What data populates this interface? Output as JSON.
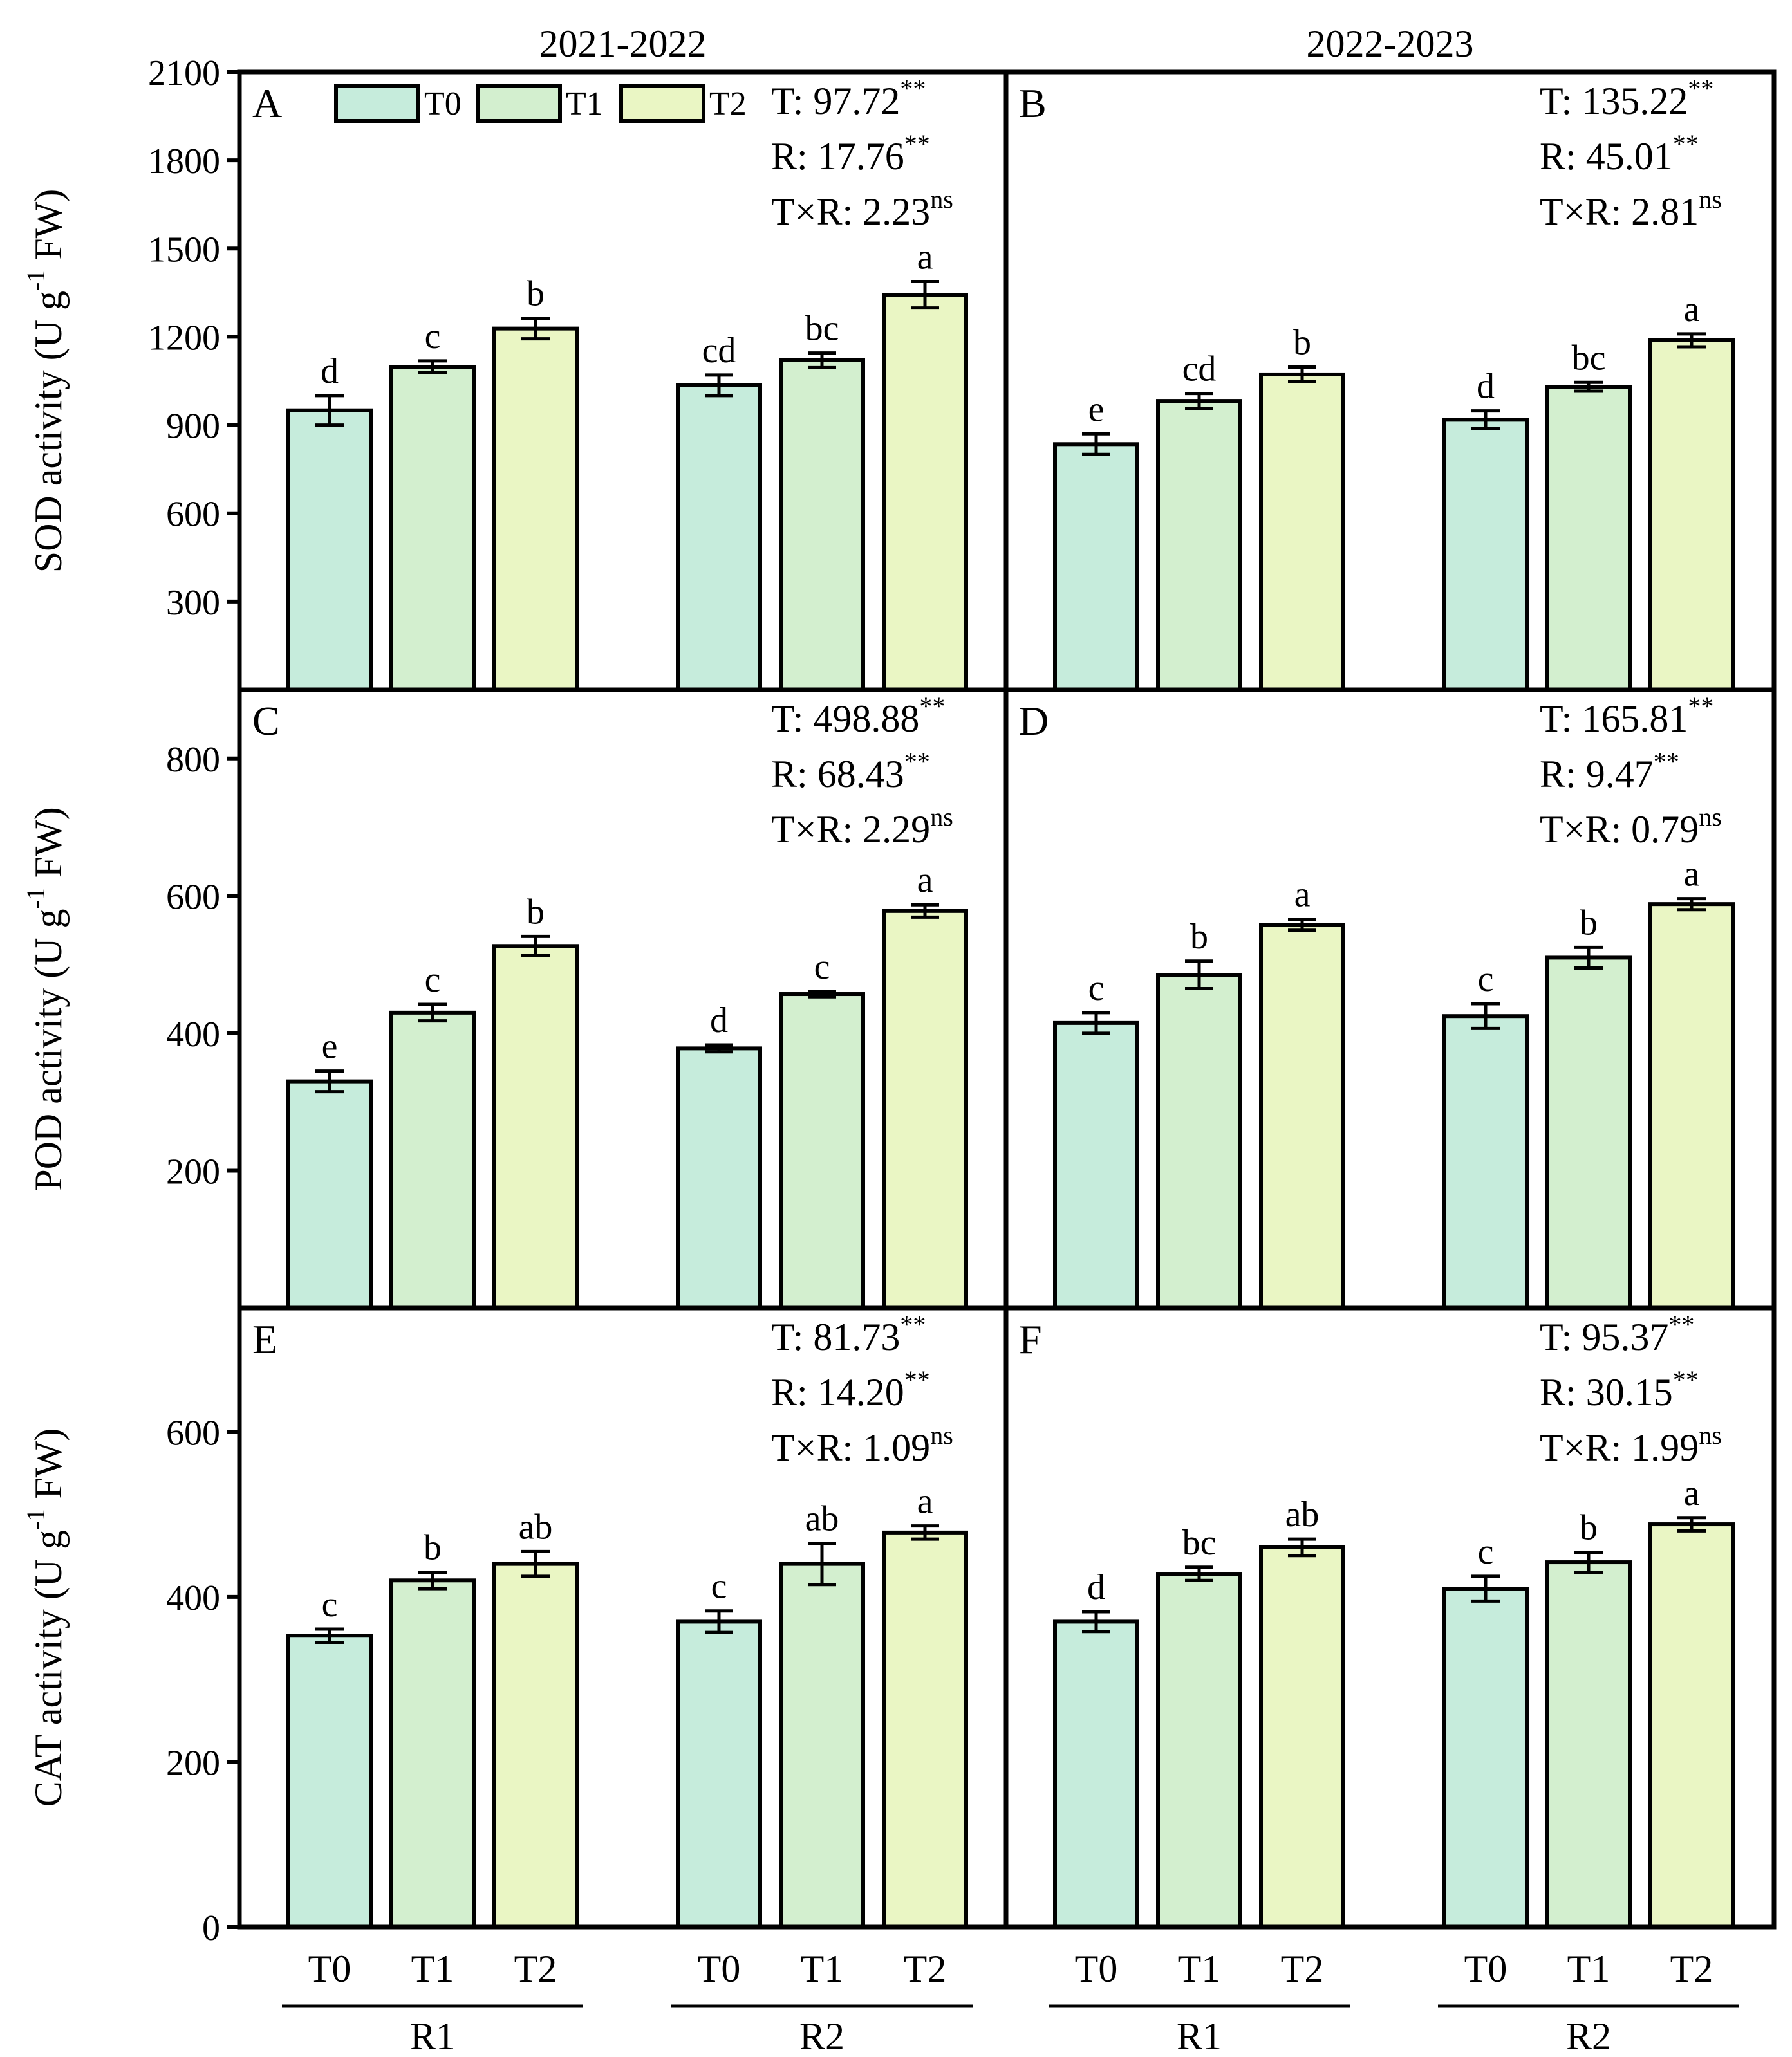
{
  "colors": {
    "T0": "#c6ecdc",
    "T1": "#d3efcf",
    "T2": "#eaf6c4",
    "stroke": "#000000"
  },
  "legend": [
    {
      "key": "T0",
      "label": "T0"
    },
    {
      "key": "T1",
      "label": "T1"
    },
    {
      "key": "T2",
      "label": "T2"
    }
  ],
  "chart_data": [
    {
      "id": "A",
      "type": "bar",
      "column_title": "2021-2022",
      "ylabel_main": "SOD activity (U g",
      "ylabel_sup": "-1",
      "ylabel_tail": " FW)",
      "ylim": [
        0,
        2100
      ],
      "yticks": [
        300,
        600,
        900,
        1200,
        1500,
        1800,
        2100
      ],
      "stats": [
        {
          "label": "T: 97.72",
          "sup": "**"
        },
        {
          "label": "R: 17.76",
          "sup": "**"
        },
        {
          "label": "T×R: 2.23",
          "sup": "ns"
        }
      ],
      "groups": [
        {
          "name": "R1",
          "bars": [
            {
              "cat": "T0",
              "value": 950,
              "err": 50,
              "sig": "d"
            },
            {
              "cat": "T1",
              "value": 1098,
              "err": 20,
              "sig": "c"
            },
            {
              "cat": "T2",
              "value": 1228,
              "err": 35,
              "sig": "b"
            }
          ]
        },
        {
          "name": "R2",
          "bars": [
            {
              "cat": "T0",
              "value": 1035,
              "err": 35,
              "sig": "cd"
            },
            {
              "cat": "T1",
              "value": 1120,
              "err": 25,
              "sig": "bc"
            },
            {
              "cat": "T2",
              "value": 1343,
              "err": 45,
              "sig": "a"
            }
          ]
        }
      ]
    },
    {
      "id": "B",
      "type": "bar",
      "column_title": "2022-2023",
      "ylim": [
        0,
        2100
      ],
      "stats": [
        {
          "label": "T: 135.22",
          "sup": "**"
        },
        {
          "label": "R: 45.01",
          "sup": "**"
        },
        {
          "label": "T×R: 2.81",
          "sup": "ns"
        }
      ],
      "groups": [
        {
          "name": "R1",
          "bars": [
            {
              "cat": "T0",
              "value": 835,
              "err": 35,
              "sig": "e"
            },
            {
              "cat": "T1",
              "value": 982,
              "err": 25,
              "sig": "cd"
            },
            {
              "cat": "T2",
              "value": 1072,
              "err": 25,
              "sig": "b"
            }
          ]
        },
        {
          "name": "R2",
          "bars": [
            {
              "cat": "T0",
              "value": 918,
              "err": 30,
              "sig": "d"
            },
            {
              "cat": "T1",
              "value": 1030,
              "err": 15,
              "sig": "bc"
            },
            {
              "cat": "T2",
              "value": 1188,
              "err": 22,
              "sig": "a"
            }
          ]
        }
      ]
    },
    {
      "id": "C",
      "type": "bar",
      "ylabel_main": "POD activity (U g",
      "ylabel_sup": "-1",
      "ylabel_tail": " FW)",
      "ylim": [
        0,
        900
      ],
      "yticks": [
        200,
        400,
        600,
        800
      ],
      "stats": [
        {
          "label": "T: 498.88",
          "sup": "**"
        },
        {
          "label": "R: 68.43",
          "sup": "**"
        },
        {
          "label": "T×R: 2.29",
          "sup": "ns"
        }
      ],
      "groups": [
        {
          "name": "R1",
          "bars": [
            {
              "cat": "T0",
              "value": 330,
              "err": 15,
              "sig": "e"
            },
            {
              "cat": "T1",
              "value": 430,
              "err": 12,
              "sig": "c"
            },
            {
              "cat": "T2",
              "value": 527,
              "err": 14,
              "sig": "b"
            }
          ]
        },
        {
          "name": "R2",
          "bars": [
            {
              "cat": "T0",
              "value": 378,
              "err": 5,
              "sig": "d"
            },
            {
              "cat": "T1",
              "value": 457,
              "err": 4,
              "sig": "c"
            },
            {
              "cat": "T2",
              "value": 578,
              "err": 9,
              "sig": "a"
            }
          ]
        }
      ]
    },
    {
      "id": "D",
      "type": "bar",
      "ylim": [
        0,
        900
      ],
      "stats": [
        {
          "label": "T: 165.81",
          "sup": "**"
        },
        {
          "label": "R: 9.47",
          "sup": "**"
        },
        {
          "label": "T×R: 0.79",
          "sup": "ns"
        }
      ],
      "groups": [
        {
          "name": "R1",
          "bars": [
            {
              "cat": "T0",
              "value": 415,
              "err": 15,
              "sig": "c"
            },
            {
              "cat": "T1",
              "value": 485,
              "err": 20,
              "sig": "b"
            },
            {
              "cat": "T2",
              "value": 558,
              "err": 8,
              "sig": "a"
            }
          ]
        },
        {
          "name": "R2",
          "bars": [
            {
              "cat": "T0",
              "value": 425,
              "err": 18,
              "sig": "c"
            },
            {
              "cat": "T1",
              "value": 510,
              "err": 15,
              "sig": "b"
            },
            {
              "cat": "T2",
              "value": 588,
              "err": 8,
              "sig": "a"
            }
          ]
        }
      ]
    },
    {
      "id": "E",
      "type": "bar",
      "ylabel_main": "CAT activity (U g",
      "ylabel_sup": "-1",
      "ylabel_tail": " FW)",
      "ylim": [
        0,
        750
      ],
      "yticks": [
        0,
        200,
        400,
        600
      ],
      "stats": [
        {
          "label": "T: 81.73",
          "sup": "**"
        },
        {
          "label": "R: 14.20",
          "sup": "**"
        },
        {
          "label": "T×R: 1.09",
          "sup": "ns"
        }
      ],
      "groups": [
        {
          "name": "R1",
          "bars": [
            {
              "cat": "T0",
              "value": 353,
              "err": 8,
              "sig": "c"
            },
            {
              "cat": "T1",
              "value": 420,
              "err": 10,
              "sig": "b"
            },
            {
              "cat": "T2",
              "value": 440,
              "err": 15,
              "sig": "ab"
            }
          ]
        },
        {
          "name": "R2",
          "bars": [
            {
              "cat": "T0",
              "value": 370,
              "err": 13,
              "sig": "c"
            },
            {
              "cat": "T1",
              "value": 440,
              "err": 25,
              "sig": "ab"
            },
            {
              "cat": "T2",
              "value": 478,
              "err": 8,
              "sig": "a"
            }
          ]
        }
      ],
      "x_labels": [
        "T0",
        "T1",
        "T2"
      ]
    },
    {
      "id": "F",
      "type": "bar",
      "ylim": [
        0,
        750
      ],
      "stats": [
        {
          "label": "T: 95.37",
          "sup": "**"
        },
        {
          "label": "R: 30.15",
          "sup": "**"
        },
        {
          "label": "T×R: 1.99",
          "sup": "ns"
        }
      ],
      "groups": [
        {
          "name": "R1",
          "bars": [
            {
              "cat": "T0",
              "value": 370,
              "err": 12,
              "sig": "d"
            },
            {
              "cat": "T1",
              "value": 428,
              "err": 8,
              "sig": "bc"
            },
            {
              "cat": "T2",
              "value": 460,
              "err": 10,
              "sig": "ab"
            }
          ]
        },
        {
          "name": "R2",
          "bars": [
            {
              "cat": "T0",
              "value": 410,
              "err": 15,
              "sig": "c"
            },
            {
              "cat": "T1",
              "value": 442,
              "err": 12,
              "sig": "b"
            },
            {
              "cat": "T2",
              "value": 488,
              "err": 8,
              "sig": "a"
            }
          ]
        }
      ],
      "x_labels": [
        "T0",
        "T1",
        "T2"
      ]
    }
  ]
}
